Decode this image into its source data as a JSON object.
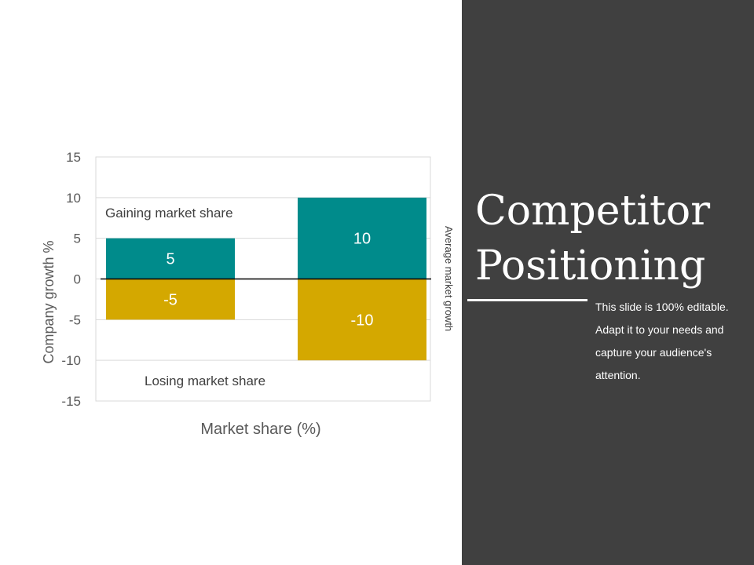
{
  "slide": {
    "title": "Competitor Positioning",
    "body": "This slide is 100% editable. Adapt it to your needs and capture your audience's attention."
  },
  "colors": {
    "gain": "#008b8b",
    "lose": "#d4a800",
    "panel": "#404040",
    "grid": "#d9d9d9",
    "axis_text": "#595959"
  },
  "chart_data": {
    "type": "bar",
    "stacked": true,
    "categories": [
      "",
      ""
    ],
    "series": [
      {
        "name": "",
        "values": [
          5,
          10
        ],
        "color": "#008b8b"
      },
      {
        "name": "",
        "values": [
          -5,
          -10
        ],
        "color": "#d4a800"
      }
    ],
    "data_labels": [
      [
        "5",
        "10"
      ],
      [
        "-5",
        "-10"
      ]
    ],
    "ylim": [
      -15,
      15
    ],
    "yticks": [
      15,
      10,
      5,
      0,
      -5,
      -10,
      -15
    ],
    "xlabel": "Market share (%)",
    "ylabel": "Company growth %",
    "grid": true,
    "legend": "none",
    "annotations": {
      "top": "Gaining market share",
      "bottom": "Losing market share",
      "right": "Average market growth"
    }
  }
}
